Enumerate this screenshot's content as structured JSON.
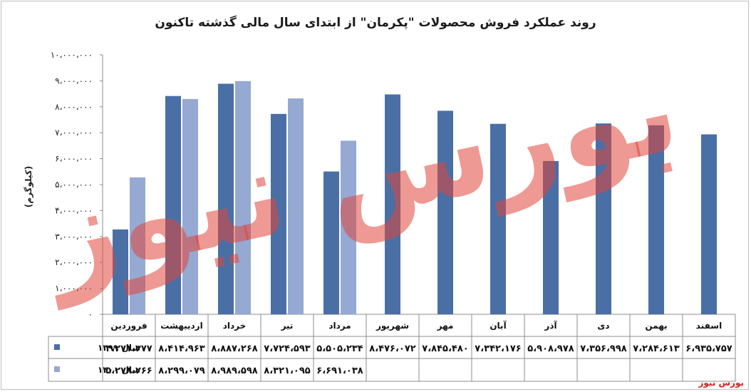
{
  "colors": {
    "series_1399": "#4a6fa5",
    "series_1400": "#95a9d2",
    "watermark": "#e0453a",
    "source": "#d42020"
  },
  "watermark_text": "بورس نیوز",
  "source_label": "بورس نیوز",
  "chart_data": {
    "type": "bar",
    "title": "روند عملکرد فروش محصولات \"پکرمان\" از ابتدای سال مالی گذشته تاکنون",
    "ylabel": "(کیلوگرم)",
    "ylim": [
      0,
      10000000
    ],
    "yticks": [
      "۰",
      "۱،۰۰۰،۰۰۰",
      "۲،۰۰۰،۰۰۰",
      "۳،۰۰۰،۰۰۰",
      "۴،۰۰۰،۰۰۰",
      "۵،۰۰۰،۰۰۰",
      "۶،۰۰۰،۰۰۰",
      "۷،۰۰۰،۰۰۰",
      "۸،۰۰۰،۰۰۰",
      "۹،۰۰۰،۰۰۰",
      "۱۰،۰۰۰،۰۰۰"
    ],
    "grid": false,
    "legend": "data-table-left",
    "categories": [
      "فروردین",
      "اردیبهشت",
      "خرداد",
      "تیر",
      "مرداد",
      "شهریور",
      "مهر",
      "آبان",
      "آذر",
      "دی",
      "بهمن",
      "اسفند"
    ],
    "series": [
      {
        "name": "سال ۱۳۹۹",
        "values": [
          3271377,
          8414963,
          8887268,
          7724593,
          5505234,
          8476072,
          7845480,
          7342176,
          5908978,
          7356998,
          7284613,
          6935757
        ],
        "labels": [
          "۳،۲۷۱،۳۷۷",
          "۸،۴۱۴،۹۶۳",
          "۸،۸۸۷،۲۶۸",
          "۷،۷۲۴،۵۹۳",
          "۵،۵۰۵،۲۳۴",
          "۸،۴۷۶،۰۷۲",
          "۷،۸۴۵،۴۸۰",
          "۷،۳۴۲،۱۷۶",
          "۵،۹۰۸،۹۷۸",
          "۷،۳۵۶،۹۹۸",
          "۷،۲۸۴،۶۱۳",
          "۶،۹۳۵،۷۵۷"
        ]
      },
      {
        "name": "سال ۱۴۰۰",
        "values": [
          5278266,
          8299079,
          8989598,
          8321095,
          6691038,
          null,
          null,
          null,
          null,
          null,
          null,
          null
        ],
        "labels": [
          "۵،۲۷۸،۲۶۶",
          "۸،۲۹۹،۰۷۹",
          "۸،۹۸۹،۵۹۸",
          "۸،۳۲۱،۰۹۵",
          "۶،۶۹۱،۰۳۸",
          "",
          "",
          "",
          "",
          "",
          "",
          ""
        ]
      }
    ]
  }
}
